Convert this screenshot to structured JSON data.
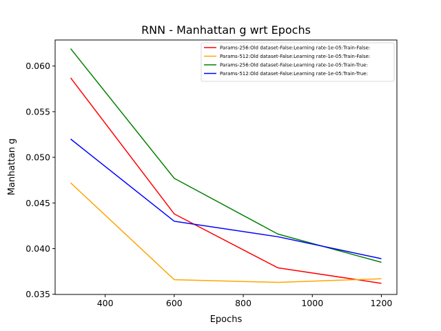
{
  "chart_data": {
    "type": "line",
    "title": "RNN - Manhattan g wrt Epochs",
    "xlabel": "Epochs",
    "ylabel": "Manhattan g",
    "x": [
      300,
      600,
      900,
      1200
    ],
    "xlim": [
      255,
      1245
    ],
    "ylim": [
      0.03498,
      0.06285
    ],
    "xticks": [
      400,
      600,
      800,
      1000,
      1200
    ],
    "xtick_labels": [
      "400",
      "600",
      "800",
      "1000",
      "1200"
    ],
    "yticks": [
      0.035,
      0.04,
      0.045,
      0.05,
      0.055,
      0.06
    ],
    "ytick_labels": [
      "0.035",
      "0.040",
      "0.045",
      "0.050",
      "0.055",
      "0.060"
    ],
    "grid": false,
    "legend_position": "top-right",
    "series": [
      {
        "name": "Params-256:Old dataset-False:Learning rate-1e-05:Train-False:",
        "color": "#ff0000",
        "values": [
          0.0587,
          0.0438,
          0.0379,
          0.0362
        ]
      },
      {
        "name": "Params-512:Old dataset-False:Learning rate-1e-05:Train-False:",
        "color": "#ffa500",
        "values": [
          0.0472,
          0.0366,
          0.0363,
          0.0367
        ]
      },
      {
        "name": "Params-256:Old dataset-False:Learning rate-1e-05:Train-True:",
        "color": "#008000",
        "values": [
          0.0619,
          0.0477,
          0.0416,
          0.0385
        ]
      },
      {
        "name": "Params-512:Old dataset-False:Learning rate-1e-05:Train-True:",
        "color": "#0000ff",
        "values": [
          0.052,
          0.043,
          0.0413,
          0.0389
        ]
      }
    ]
  }
}
